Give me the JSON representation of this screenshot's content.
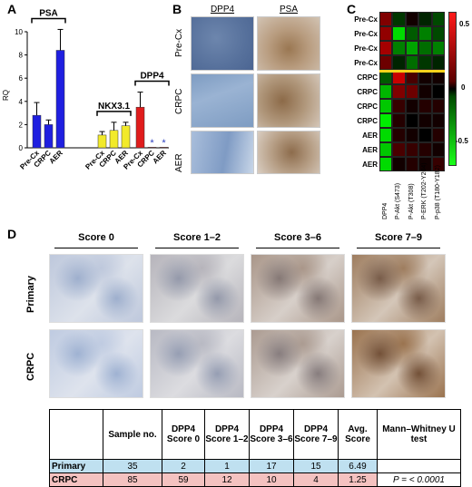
{
  "panels": {
    "a": "A",
    "b": "B",
    "c": "C",
    "d": "D"
  },
  "panel_a": {
    "ylabel": "RQ",
    "chart_data": {
      "type": "bar",
      "ylabel": "RQ",
      "ylim": [
        0,
        10
      ],
      "yticks": [
        0,
        2,
        4,
        6,
        8,
        10
      ],
      "groups": [
        {
          "name": "PSA",
          "color": "#1f1fe0",
          "categories": [
            "Pre-Cx",
            "CRPC",
            "AER"
          ],
          "values": [
            2.8,
            2.0,
            8.4
          ],
          "errors": [
            1.1,
            0.4,
            1.8
          ]
        },
        {
          "name": "NKX3.1",
          "color": "#f2ea2a",
          "categories": [
            "Pre-Cx",
            "CRPC",
            "AER"
          ],
          "values": [
            1.1,
            1.5,
            1.9
          ],
          "errors": [
            0.3,
            0.7,
            0.3
          ]
        },
        {
          "name": "DPP4",
          "color": "#e01c1c",
          "categories": [
            "Pre-Cx",
            "CRPC",
            "AER"
          ],
          "values": [
            3.5,
            0.05,
            0.05
          ],
          "errors": [
            1.3,
            0.0,
            0.0
          ],
          "markers": [
            "",
            "*",
            "*"
          ]
        }
      ]
    }
  },
  "panel_b": {
    "col_headers": [
      "DPP4",
      "PSA"
    ],
    "row_labels": [
      "Pre-Cx",
      "CRPC",
      "AER"
    ]
  },
  "panel_c": {
    "rows": [
      "Pre-Cx",
      "Pre-Cx",
      "Pre-Cx",
      "Pre-Cx",
      "CRPC",
      "CRPC",
      "CRPC",
      "CRPC",
      "AER",
      "AER",
      "AER"
    ],
    "cols": [
      "DPP4",
      "P-Akt (S473)",
      "P-Akt (T308)",
      "P-ERK (T202-Y204)",
      "P-p38 (T180-Y182)"
    ],
    "colorbar_labels": [
      "0.5",
      "0",
      "-0.5"
    ],
    "chart_data": {
      "type": "heatmap",
      "row_labels": [
        "Pre-Cx",
        "Pre-Cx",
        "Pre-Cx",
        "Pre-Cx",
        "CRPC",
        "CRPC",
        "CRPC",
        "CRPC",
        "AER",
        "AER",
        "AER"
      ],
      "col_labels": [
        "DPP4",
        "P-Akt (S473)",
        "P-Akt (T308)",
        "P-ERK (T202-Y204)",
        "P-p38 (T180-Y182)"
      ],
      "range": [
        -0.7,
        0.7
      ],
      "values": [
        [
          0.35,
          -0.15,
          0.05,
          -0.1,
          -0.2
        ],
        [
          0.4,
          -0.6,
          -0.25,
          -0.35,
          -0.2
        ],
        [
          0.45,
          -0.35,
          -0.45,
          -0.3,
          -0.35
        ],
        [
          0.3,
          -0.1,
          -0.3,
          -0.15,
          -0.1
        ],
        [
          -0.25,
          0.55,
          0.2,
          0.05,
          0.05
        ],
        [
          -0.5,
          0.35,
          0.3,
          0.05,
          0.0
        ],
        [
          -0.55,
          0.15,
          0.05,
          0.1,
          0.1
        ],
        [
          -0.65,
          0.1,
          0.0,
          0.05,
          0.05
        ],
        [
          -0.6,
          0.1,
          0.05,
          0.0,
          0.1
        ],
        [
          -0.55,
          0.2,
          0.15,
          0.1,
          0.05
        ],
        [
          -0.6,
          0.05,
          0.1,
          0.05,
          0.15
        ]
      ]
    }
  },
  "panel_d": {
    "scores": [
      "Score 0",
      "Score 1–2",
      "Score 3–6",
      "Score 7–9"
    ],
    "row_labels": [
      "Primary",
      "CRPC"
    ],
    "stain_level": {
      "Primary": [
        0.05,
        0.25,
        0.55,
        0.8
      ],
      "CRPC": [
        0.02,
        0.2,
        0.5,
        0.9
      ]
    },
    "table": {
      "headers": [
        "",
        "Sample no.",
        "DPP4 Score 0",
        "DPP4 Score 1–2",
        "DPP4 Score 3–6",
        "DPP4 Score 7–9",
        "Avg. Score",
        "Mann–Whitney U test"
      ],
      "rows": [
        [
          "Primary",
          "35",
          "2",
          "1",
          "17",
          "15",
          "6.49",
          ""
        ],
        [
          "CRPC",
          "85",
          "59",
          "12",
          "10",
          "4",
          "1.25",
          "P = < 0.0001"
        ]
      ]
    }
  }
}
